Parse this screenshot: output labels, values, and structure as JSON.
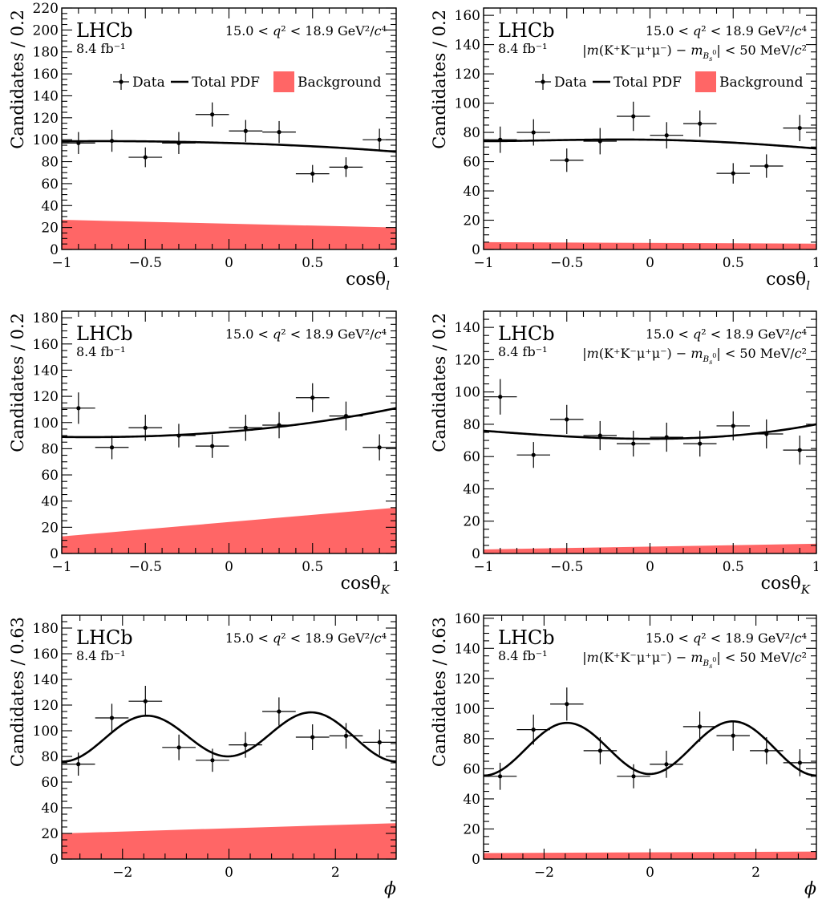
{
  "legend": {
    "data": "Data",
    "total": "Total PDF",
    "bkg": "Background"
  },
  "colors": {
    "background": "#ff6666",
    "curve": "#000000",
    "data": "#000000"
  },
  "chart_data": [
    {
      "type": "scatter",
      "lhcb": "LHCb",
      "lumi": "8.4 fb⁻¹",
      "ann1": "15.0 < q² < 18.9 GeV²/c⁴",
      "ann2": "",
      "ylabel": "Candidates / 0.2",
      "xlabel": "cosθ",
      "xlabel_sub": "l",
      "xlim": [
        -1,
        1
      ],
      "ylim": [
        0,
        220
      ],
      "xticks": [
        -1,
        -0.5,
        0,
        0.5,
        1
      ],
      "xtick_labels": [
        "−1",
        "−0.5",
        "0",
        "0.5",
        "1"
      ],
      "yticks": [
        0,
        20,
        40,
        60,
        80,
        100,
        120,
        140,
        160,
        180,
        200,
        220
      ],
      "x": [
        -0.9,
        -0.7,
        -0.5,
        -0.3,
        -0.1,
        0.1,
        0.3,
        0.5,
        0.7,
        0.9
      ],
      "y": [
        97,
        99,
        84,
        97,
        123,
        108,
        107,
        69,
        75,
        100
      ],
      "yerr": [
        10,
        10,
        9,
        10,
        11,
        10,
        10,
        8,
        9,
        10
      ],
      "xerr": 0.1,
      "total_pdf": {
        "x": [
          -1,
          -0.5,
          0,
          0.5,
          1
        ],
        "y": [
          98.5,
          98.5,
          97,
          94,
          89
        ]
      },
      "background": {
        "x": [
          -1,
          1
        ],
        "y": [
          27,
          20
        ]
      },
      "show_legend": true
    },
    {
      "type": "scatter",
      "lhcb": "LHCb",
      "lumi": "8.4 fb⁻¹",
      "ann1": "15.0 < q² < 18.9 GeV²/c⁴",
      "ann2": "|m(K⁺K⁻μ⁺μ⁻) − m_{B_s^0}| < 50 MeV/c²",
      "ylabel": "Candidates / 0.2",
      "xlabel": "cosθ",
      "xlabel_sub": "l",
      "xlim": [
        -1,
        1
      ],
      "ylim": [
        0,
        165
      ],
      "xticks": [
        -1,
        -0.5,
        0,
        0.5,
        1
      ],
      "xtick_labels": [
        "−1",
        "−0.5",
        "0",
        "0.5",
        "1"
      ],
      "yticks": [
        0,
        20,
        40,
        60,
        80,
        100,
        120,
        140,
        160
      ],
      "x": [
        -0.9,
        -0.7,
        -0.5,
        -0.3,
        -0.1,
        0.1,
        0.3,
        0.5,
        0.7,
        0.9
      ],
      "y": [
        75,
        80,
        61,
        74,
        91,
        78,
        86,
        52,
        57,
        83
      ],
      "yerr": [
        9,
        9,
        8,
        9,
        10,
        9,
        9,
        7,
        8,
        9
      ],
      "xerr": 0.1,
      "total_pdf": {
        "x": [
          -1,
          -0.5,
          0,
          0.5,
          1
        ],
        "y": [
          74,
          74.8,
          75,
          73,
          69
        ]
      },
      "background": {
        "x": [
          -1,
          1
        ],
        "y": [
          5,
          4
        ]
      },
      "show_legend": true
    },
    {
      "type": "scatter",
      "lhcb": "LHCb",
      "lumi": "8.4 fb⁻¹",
      "ann1": "15.0 < q² < 18.9 GeV²/c⁴",
      "ann2": "",
      "ylabel": "Candidates / 0.2",
      "xlabel": "cosθ",
      "xlabel_sub": "K",
      "xlim": [
        -1,
        1
      ],
      "ylim": [
        0,
        185
      ],
      "xticks": [
        -1,
        -0.5,
        0,
        0.5,
        1
      ],
      "xtick_labels": [
        "−1",
        "−0.5",
        "0",
        "0.5",
        "1"
      ],
      "yticks": [
        0,
        20,
        40,
        60,
        80,
        100,
        120,
        140,
        160,
        180
      ],
      "x": [
        -0.9,
        -0.7,
        -0.5,
        -0.3,
        -0.1,
        0.1,
        0.3,
        0.5,
        0.7,
        0.9
      ],
      "y": [
        111,
        81,
        96,
        90,
        82,
        96,
        98,
        119,
        105,
        81
      ],
      "yerr": [
        12,
        9,
        10,
        9,
        9,
        10,
        10,
        11,
        11,
        10
      ],
      "xerr": 0.1,
      "total_pdf": {
        "x": [
          -1,
          -0.5,
          0,
          0.5,
          1
        ],
        "y": [
          89,
          89.5,
          93,
          100,
          111
        ]
      },
      "background": {
        "x": [
          -1,
          1
        ],
        "y": [
          13,
          35
        ]
      },
      "show_legend": false
    },
    {
      "type": "scatter",
      "lhcb": "LHCb",
      "lumi": "8.4 fb⁻¹",
      "ann1": "15.0 < q² < 18.9 GeV²/c⁴",
      "ann2": "|m(K⁺K⁻μ⁺μ⁻) − m_{B_s^0}| < 50 MeV/c²",
      "ylabel": "Candidates / 0.2",
      "xlabel": "cosθ",
      "xlabel_sub": "K",
      "xlim": [
        -1,
        1
      ],
      "ylim": [
        0,
        150
      ],
      "xticks": [
        -1,
        -0.5,
        0,
        0.5,
        1
      ],
      "xtick_labels": [
        "−1",
        "−0.5",
        "0",
        "0.5",
        "1"
      ],
      "yticks": [
        0,
        20,
        40,
        60,
        80,
        100,
        120,
        140
      ],
      "x": [
        -0.9,
        -0.7,
        -0.5,
        -0.3,
        -0.1,
        0.1,
        0.3,
        0.5,
        0.7,
        0.9
      ],
      "y": [
        97,
        61,
        83,
        73,
        68,
        72,
        68,
        79,
        74,
        64
      ],
      "yerr": [
        11,
        8,
        9,
        9,
        8,
        9,
        8,
        9,
        9,
        9
      ],
      "xerr": 0.1,
      "total_pdf": {
        "x": [
          -1,
          -0.5,
          0,
          0.5,
          1
        ],
        "y": [
          76,
          72.5,
          71,
          73,
          80
        ]
      },
      "background": {
        "x": [
          -1,
          1
        ],
        "y": [
          2.5,
          6
        ]
      },
      "show_legend": false
    },
    {
      "type": "scatter",
      "lhcb": "LHCb",
      "lumi": "8.4 fb⁻¹",
      "ann1": "15.0 < q² < 18.9 GeV²/c⁴",
      "ann2": "",
      "ylabel": "Candidates / 0.63",
      "xlabel": "ϕ",
      "xlabel_sub": "",
      "xlim": [
        -3.1416,
        3.1416
      ],
      "ylim": [
        0,
        190
      ],
      "xticks": [
        -2,
        0,
        2
      ],
      "xtick_labels": [
        "−2",
        "0",
        "2"
      ],
      "yticks": [
        0,
        20,
        40,
        60,
        80,
        100,
        120,
        140,
        160,
        180
      ],
      "x": [
        -2.83,
        -2.2,
        -1.57,
        -0.94,
        -0.31,
        0.31,
        0.94,
        1.57,
        2.2,
        2.83
      ],
      "y": [
        74,
        110,
        123,
        87,
        77,
        89,
        115,
        95,
        96,
        91
      ],
      "yerr": [
        9,
        11,
        12,
        10,
        9,
        10,
        11,
        10,
        10,
        10
      ],
      "xerr": 0.314,
      "total_pdf": {
        "model": "cos2phi",
        "a0": 95.5,
        "a1": 2,
        "a2": -17.5,
        "b1": 1.3
      },
      "background": {
        "x": [
          -3.1416,
          3.1416
        ],
        "y": [
          20,
          28
        ]
      },
      "show_legend": false
    },
    {
      "type": "scatter",
      "lhcb": "LHCb",
      "lumi": "8.4 fb⁻¹",
      "ann1": "15.0 < q² < 18.9 GeV²/c⁴",
      "ann2": "|m(K⁺K⁻μ⁺μ⁻) − m_{B_s^0}| < 50 MeV/c²",
      "ylabel": "Candidates / 0.63",
      "xlabel": "ϕ",
      "xlabel_sub": "",
      "xlim": [
        -3.1416,
        3.1416
      ],
      "ylim": [
        0,
        162
      ],
      "xticks": [
        -2,
        0,
        2
      ],
      "xtick_labels": [
        "−2",
        "0",
        "2"
      ],
      "yticks": [
        0,
        20,
        40,
        60,
        80,
        100,
        120,
        140,
        160
      ],
      "x": [
        -2.83,
        -2.2,
        -1.57,
        -0.94,
        -0.31,
        0.31,
        0.94,
        1.57,
        2.2,
        2.83
      ],
      "y": [
        55,
        86,
        103,
        72,
        55,
        63,
        88,
        82,
        72,
        64
      ],
      "yerr": [
        9,
        10,
        11,
        9,
        8,
        9,
        10,
        10,
        9,
        9
      ],
      "xerr": 0.314,
      "total_pdf": {
        "model": "cos2phi",
        "a0": 73.5,
        "a1": 0.5,
        "a2": -17.5,
        "b1": 0.5
      },
      "background": {
        "x": [
          -3.1416,
          3.1416
        ],
        "y": [
          4,
          5
        ]
      },
      "show_legend": false
    }
  ]
}
